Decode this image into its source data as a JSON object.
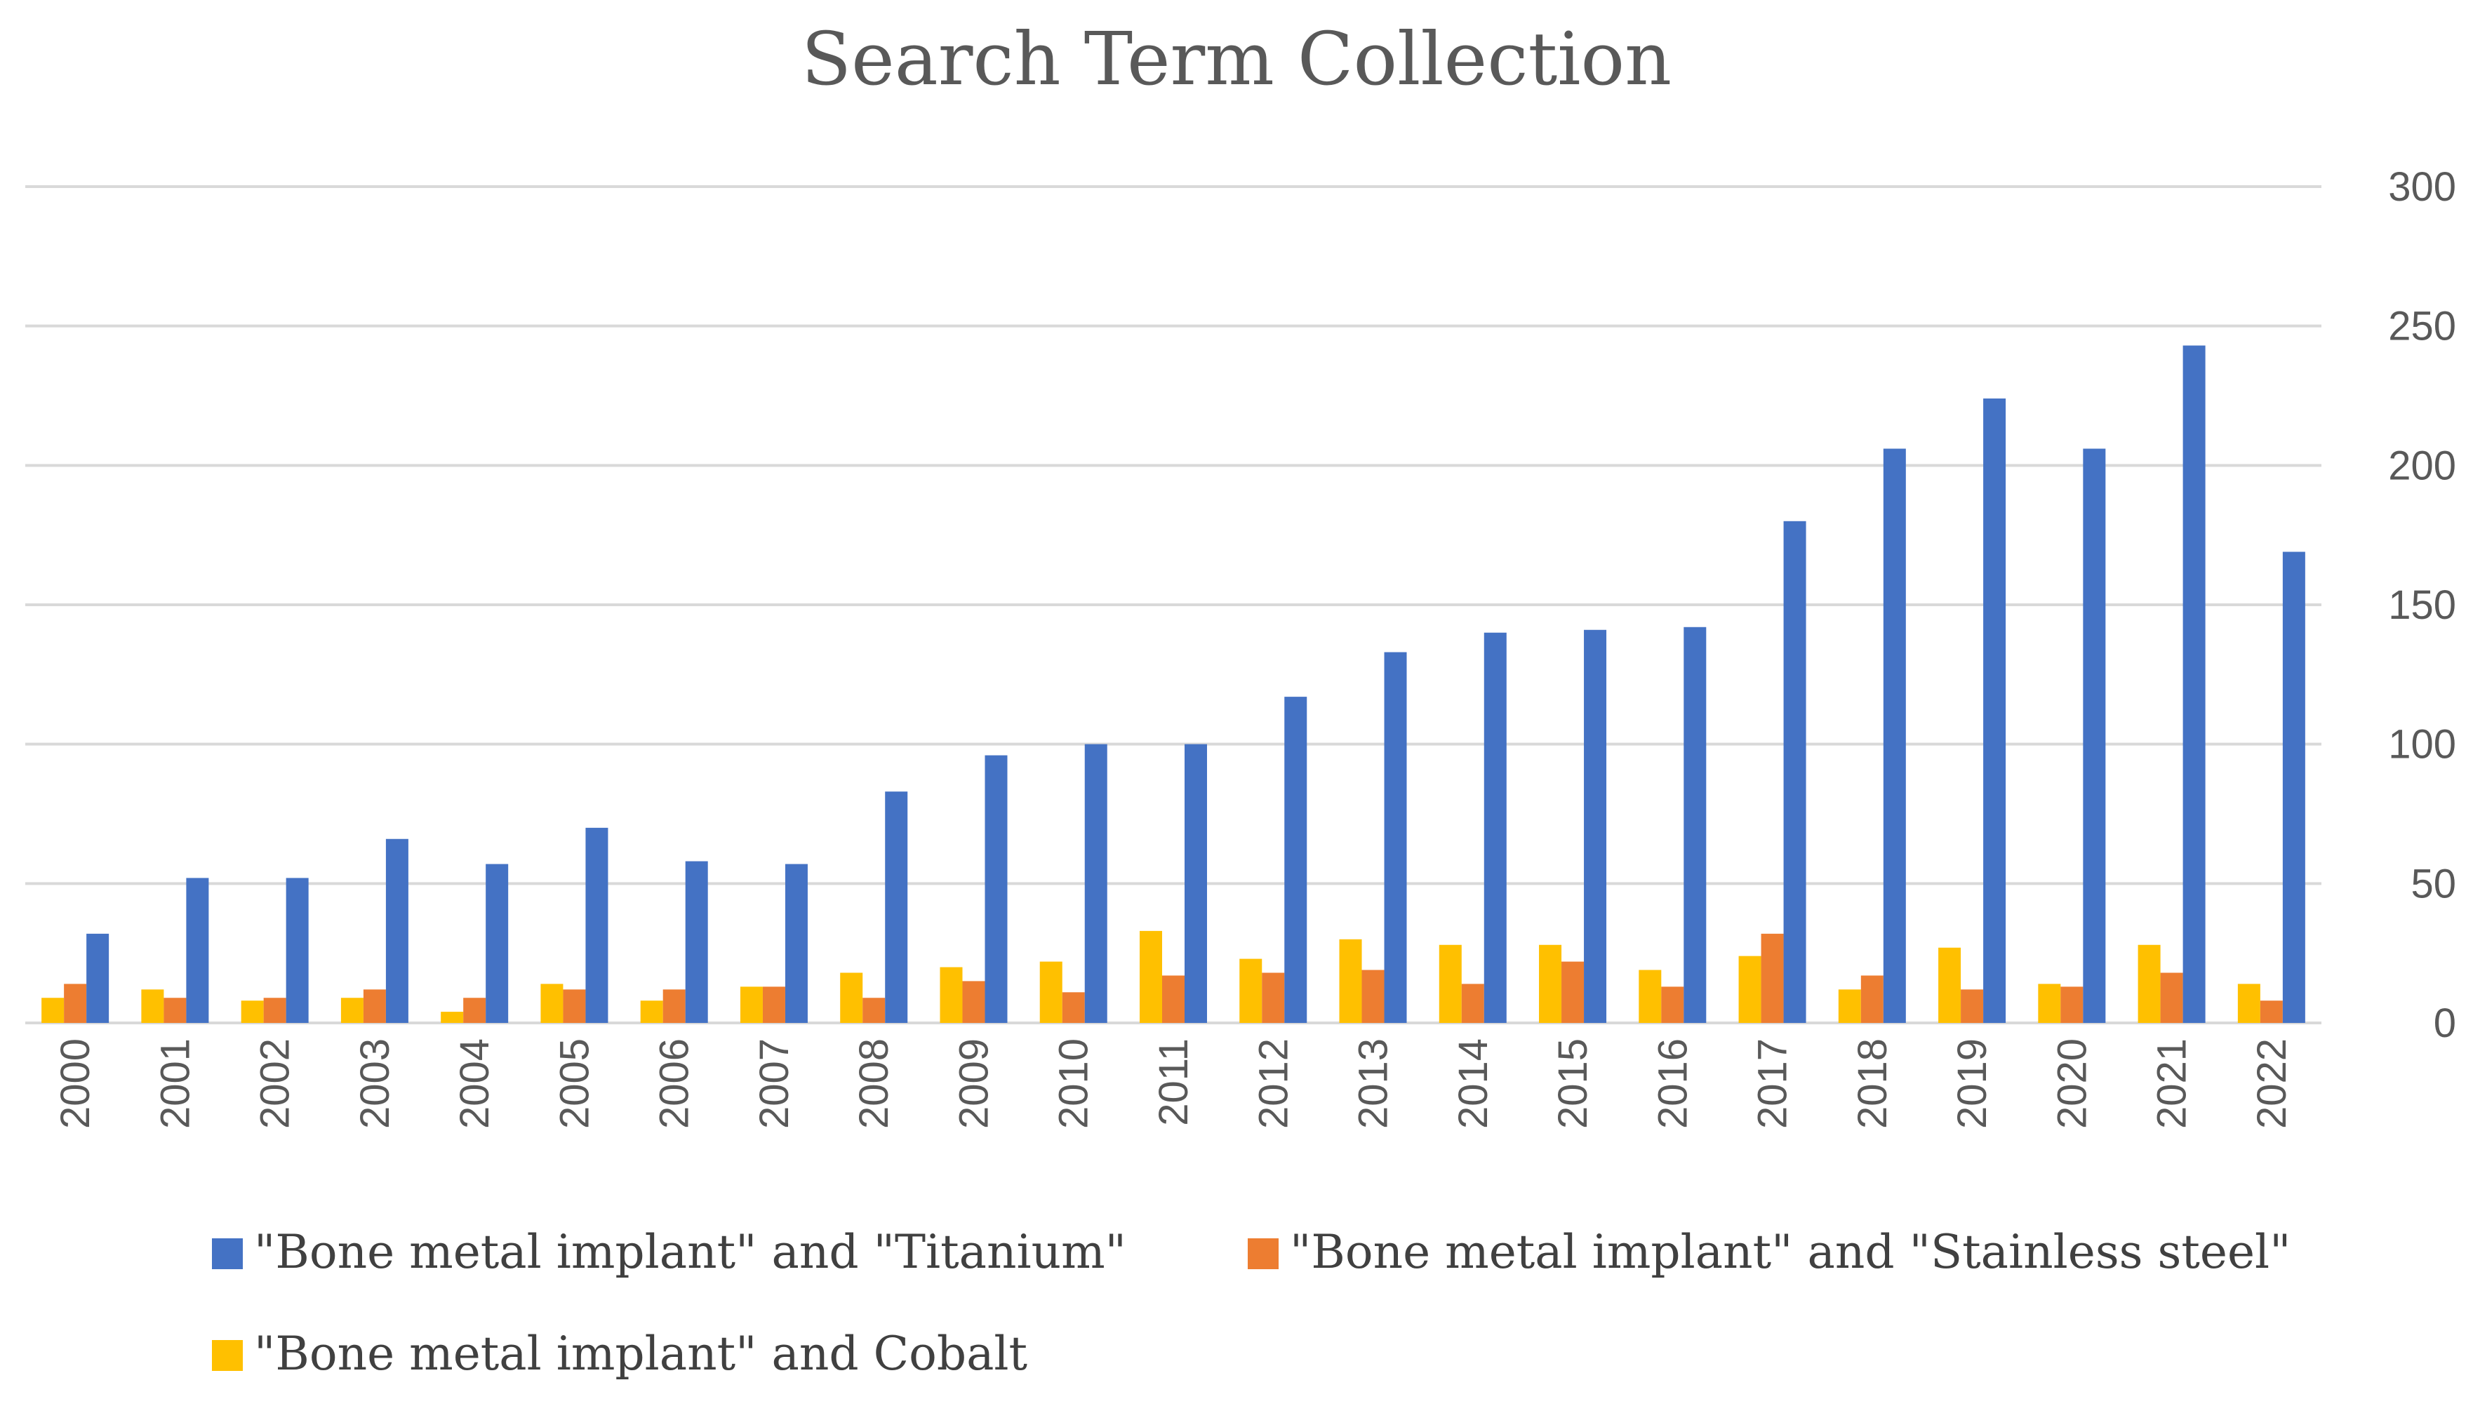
{
  "chart_data": {
    "type": "bar",
    "title": "Search Term Collection",
    "xlabel": "",
    "ylabel": "",
    "ylim": [
      0,
      300
    ],
    "yticks": [
      0,
      50,
      100,
      150,
      200,
      250,
      300
    ],
    "y_axis_side": "right",
    "grid": true,
    "legend_position": "bottom",
    "categories": [
      "2000",
      "2001",
      "2002",
      "2003",
      "2004",
      "2005",
      "2006",
      "2007",
      "2008",
      "2009",
      "2010",
      "2011",
      "2012",
      "2013",
      "2014",
      "2015",
      "2016",
      "2017",
      "2018",
      "2019",
      "2020",
      "2021",
      "2022"
    ],
    "series": [
      {
        "name": "\"Bone metal implant\" and Cobalt",
        "color": "#FFC000",
        "values": [
          9,
          12,
          8,
          9,
          4,
          14,
          8,
          13,
          18,
          20,
          22,
          33,
          23,
          30,
          28,
          28,
          19,
          24,
          12,
          27,
          14,
          28,
          14
        ]
      },
      {
        "name": "\"Bone metal implant\" and \"Stainless steel\"",
        "color": "#ED7D31",
        "values": [
          14,
          9,
          9,
          12,
          9,
          12,
          12,
          13,
          9,
          15,
          11,
          17,
          18,
          19,
          14,
          22,
          13,
          32,
          17,
          12,
          13,
          18,
          8
        ]
      },
      {
        "name": "\"Bone metal implant\" and \"Titanium\"",
        "color": "#4472C4",
        "values": [
          32,
          52,
          52,
          66,
          57,
          70,
          58,
          57,
          83,
          96,
          100,
          100,
          117,
          133,
          140,
          141,
          142,
          180,
          206,
          224,
          206,
          243,
          169
        ]
      }
    ],
    "legend": [
      {
        "series_index": 2,
        "row": 0,
        "col": 0
      },
      {
        "series_index": 1,
        "row": 0,
        "col": 1
      },
      {
        "series_index": 0,
        "row": 1,
        "col": 0
      }
    ]
  }
}
